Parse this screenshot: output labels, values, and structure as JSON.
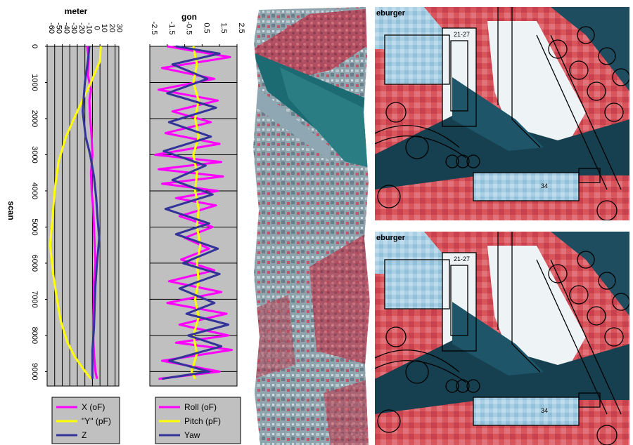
{
  "chart_data": [
    {
      "type": "line",
      "title": "meter",
      "ylabel": "scan",
      "x_range": [
        -60,
        35
      ],
      "x_ticks": [
        "-60",
        "-50",
        "-40",
        "-30",
        "-20",
        "-10",
        "0",
        "10",
        "20",
        "30"
      ],
      "y_range": [
        0,
        9400
      ],
      "y_ticks": [
        "0",
        "1000",
        "2000",
        "3000",
        "4000",
        "5000",
        "6000",
        "7000",
        "8000",
        "9000"
      ],
      "grid": "vertical",
      "legend_position": "bottom",
      "legend": [
        "X (oF)",
        "\"Y\" (pF)",
        "Z"
      ],
      "series": [
        {
          "name": "X (oF)",
          "color": "#ff00ff",
          "points": [
            [
              -7,
              0
            ],
            [
              -5,
              300
            ],
            [
              -6,
              800
            ],
            [
              -2,
              1200
            ],
            [
              -4,
              1500
            ],
            [
              -3,
              2000
            ],
            [
              -1,
              2500
            ],
            [
              0,
              3000
            ],
            [
              -2,
              3500
            ],
            [
              -1,
              4000
            ],
            [
              1,
              4500
            ],
            [
              2,
              5000
            ],
            [
              3,
              5500
            ],
            [
              4,
              6000
            ],
            [
              2,
              6500
            ],
            [
              2,
              7000
            ],
            [
              1,
              7500
            ],
            [
              1,
              8000
            ],
            [
              2,
              8500
            ],
            [
              4,
              9000
            ],
            [
              6,
              9200
            ]
          ]
        },
        {
          "name": "\"Y\" (pF)",
          "color": "#ffff00",
          "points": [
            [
              11,
              0
            ],
            [
              10,
              400
            ],
            [
              -2,
              1000
            ],
            [
              -20,
              1800
            ],
            [
              -35,
              2500
            ],
            [
              -45,
              3200
            ],
            [
              -50,
              4000
            ],
            [
              -53,
              4800
            ],
            [
              -56,
              5500
            ],
            [
              -52,
              6300
            ],
            [
              -47,
              7000
            ],
            [
              -42,
              7600
            ],
            [
              -33,
              8200
            ],
            [
              -23,
              8600
            ],
            [
              -13,
              8900
            ],
            [
              -2,
              9200
            ]
          ]
        },
        {
          "name": "Z",
          "color": "#333399",
          "points": [
            [
              -4,
              0
            ],
            [
              -6,
              400
            ],
            [
              -10,
              1000
            ],
            [
              -13,
              1800
            ],
            [
              -9,
              2500
            ],
            [
              -3,
              3000
            ],
            [
              2,
              3600
            ],
            [
              5,
              4200
            ],
            [
              7,
              4800
            ],
            [
              9,
              5300
            ],
            [
              6,
              6000
            ],
            [
              4,
              6600
            ],
            [
              3,
              7200
            ],
            [
              2,
              7800
            ],
            [
              0,
              8400
            ],
            [
              0,
              9200
            ]
          ]
        }
      ]
    },
    {
      "type": "line",
      "title": "gon",
      "x_range": [
        -2.5,
        2.5
      ],
      "x_ticks": [
        "-2.5",
        "-1.5",
        "-0.5",
        "0.5",
        "1.5",
        "2.5"
      ],
      "y_range": [
        0,
        9400
      ],
      "grid": "horizontal",
      "legend_position": "bottom",
      "legend": [
        "Roll (oF)",
        "Pitch (pF)",
        "Yaw"
      ],
      "series": [
        {
          "name": "Roll (oF)",
          "color": "#ff00ff",
          "points": [
            [
              -1.5,
              0
            ],
            [
              2.1,
              300
            ],
            [
              -1.8,
              600
            ],
            [
              1.2,
              900
            ],
            [
              -2,
              1200
            ],
            [
              1.4,
              1500
            ],
            [
              -1.2,
              1800
            ],
            [
              1.0,
              2100
            ],
            [
              -1.6,
              2400
            ],
            [
              1.5,
              2700
            ],
            [
              -2.2,
              3000
            ],
            [
              1.6,
              3200
            ],
            [
              -2.0,
              3400
            ],
            [
              1.7,
              3600
            ],
            [
              -1.8,
              3800
            ],
            [
              1.4,
              4000
            ],
            [
              -1.0,
              4200
            ],
            [
              1.3,
              4400
            ],
            [
              -0.8,
              4700
            ],
            [
              1.1,
              5000
            ],
            [
              -0.5,
              5300
            ],
            [
              0.9,
              5600
            ],
            [
              -0.7,
              5900
            ],
            [
              1.2,
              6200
            ],
            [
              -1.4,
              6500
            ],
            [
              1.6,
              6800
            ],
            [
              -1.5,
              7100
            ],
            [
              1.9,
              7400
            ],
            [
              -0.8,
              7700
            ],
            [
              2.0,
              8000
            ],
            [
              -1.0,
              8200
            ],
            [
              2.2,
              8400
            ],
            [
              -1.8,
              8700
            ],
            [
              1.5,
              9000
            ],
            [
              -2.0,
              9200
            ]
          ]
        },
        {
          "name": "Pitch (pF)",
          "color": "#ffff00",
          "points": [
            [
              0.0,
              0
            ],
            [
              0.2,
              500
            ],
            [
              0.0,
              1000
            ],
            [
              0.3,
              1500
            ],
            [
              0.1,
              2000
            ],
            [
              0.3,
              2500
            ],
            [
              0.0,
              3000
            ],
            [
              0.2,
              3500
            ],
            [
              0.1,
              4000
            ],
            [
              0.3,
              4500
            ],
            [
              0.2,
              5000
            ],
            [
              0.4,
              5500
            ],
            [
              0.2,
              6000
            ],
            [
              0.3,
              6500
            ],
            [
              0.1,
              7000
            ],
            [
              0.3,
              7500
            ],
            [
              0.0,
              8000
            ],
            [
              0.2,
              8500
            ],
            [
              -0.1,
              9000
            ],
            [
              0.1,
              9200
            ]
          ]
        },
        {
          "name": "Yaw",
          "color": "#333399",
          "points": [
            [
              -1.0,
              0
            ],
            [
              1.5,
              200
            ],
            [
              -1.2,
              500
            ],
            [
              0.8,
              900
            ],
            [
              -1.5,
              1300
            ],
            [
              1.3,
              1700
            ],
            [
              -1.4,
              2100
            ],
            [
              1.0,
              2500
            ],
            [
              -1.7,
              2900
            ],
            [
              0.7,
              3300
            ],
            [
              -1.2,
              3700
            ],
            [
              1.1,
              4100
            ],
            [
              -1.6,
              4500
            ],
            [
              0.9,
              4900
            ],
            [
              -1.0,
              5200
            ],
            [
              1.4,
              5600
            ],
            [
              -0.6,
              6000
            ],
            [
              1.5,
              6300
            ],
            [
              -0.8,
              6700
            ],
            [
              1.2,
              7100
            ],
            [
              -0.4,
              7400
            ],
            [
              2.0,
              7700
            ],
            [
              -0.3,
              8000
            ],
            [
              1.6,
              8300
            ],
            [
              -1.4,
              8700
            ],
            [
              0.9,
              9000
            ],
            [
              -1.8,
              9200
            ]
          ]
        }
      ]
    }
  ],
  "images": [
    {
      "name": "aerial-strip-image",
      "description": "Aerial false-colour strip with river (top) and urban area"
    },
    {
      "name": "map-overlay-top-image",
      "label_text": "eburger",
      "block_labels": [
        "21-27",
        "34"
      ]
    },
    {
      "name": "map-overlay-bottom-image",
      "label_text": "eburger",
      "block_labels": [
        "21-27",
        "34"
      ]
    }
  ],
  "colors": {
    "plot_bg": "#c0c0c0",
    "grid": "#000000",
    "legend_border": "#000000",
    "red_veg": "#d9555c",
    "sky_blue": "#a8cfe4",
    "dark_teal": "#16404f"
  }
}
